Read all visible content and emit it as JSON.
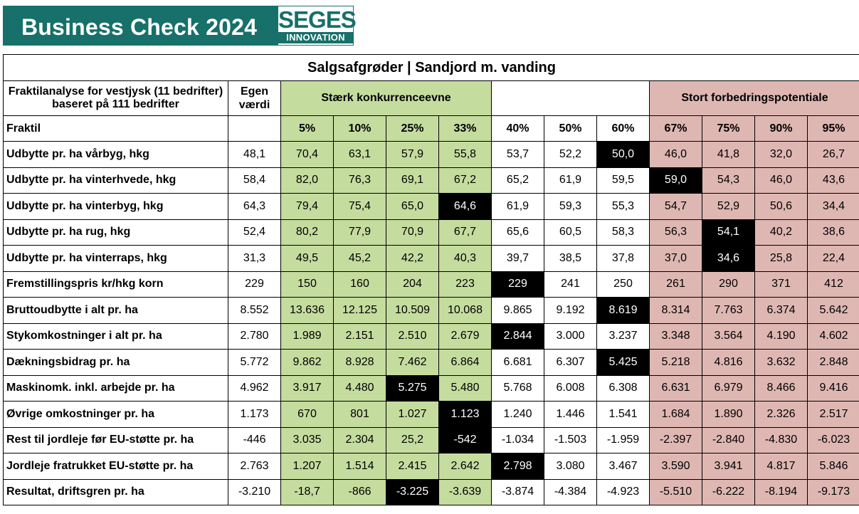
{
  "banner": {
    "title": "Business Check 2024",
    "logo_main": "SEGES",
    "logo_sub": "INNOVATION"
  },
  "table": {
    "title": "Salgsafgrøder | Sandjord m. vanding",
    "description": "Fraktilanalyse for vestjysk (11 bedrifter) baseret på 111 bedrifter",
    "egen_label": "Egen værdi",
    "group_strong": "Stærk konkurrenceevne",
    "group_improve": "Stort forbedringspotentiale",
    "fraktil_label": "Fraktil",
    "fraktiles": [
      "5%",
      "10%",
      "25%",
      "33%",
      "40%",
      "50%",
      "60%",
      "67%",
      "75%",
      "90%",
      "95%"
    ],
    "rows": [
      {
        "label": "Udbytte pr. ha vårbyg, hkg",
        "egen": "48,1",
        "values": [
          "70,4",
          "63,1",
          "57,9",
          "55,8",
          "53,7",
          "52,2",
          "50,0",
          "46,0",
          "41,8",
          "32,0",
          "26,7"
        ],
        "highlight": 6
      },
      {
        "label": "Udbytte pr. ha vinterhvede, hkg",
        "egen": "58,4",
        "values": [
          "82,0",
          "76,3",
          "69,1",
          "67,2",
          "65,2",
          "61,9",
          "59,5",
          "59,0",
          "54,3",
          "46,0",
          "43,6"
        ],
        "highlight": 7
      },
      {
        "label": "Udbytte pr. ha vinterbyg, hkg",
        "egen": "64,3",
        "values": [
          "79,4",
          "75,4",
          "65,0",
          "64,6",
          "61,9",
          "59,3",
          "55,3",
          "54,7",
          "52,9",
          "50,6",
          "34,4"
        ],
        "highlight": 3
      },
      {
        "label": "Udbytte pr. ha rug, hkg",
        "egen": "52,4",
        "values": [
          "80,2",
          "77,9",
          "70,9",
          "67,7",
          "65,6",
          "60,5",
          "58,3",
          "56,3",
          "54,1",
          "40,2",
          "38,6"
        ],
        "highlight": 8
      },
      {
        "label": "Udbytte pr. ha vinterraps, hkg",
        "egen": "31,3",
        "values": [
          "49,5",
          "45,2",
          "42,2",
          "40,3",
          "39,7",
          "38,5",
          "37,8",
          "37,0",
          "34,6",
          "25,8",
          "22,4"
        ],
        "highlight": 8
      },
      {
        "label": "Fremstillingspris kr/hkg korn",
        "egen": "229",
        "values": [
          "150",
          "160",
          "204",
          "223",
          "229",
          "241",
          "250",
          "261",
          "290",
          "371",
          "412"
        ],
        "highlight": 4
      },
      {
        "label": "Bruttoudbytte i alt pr. ha",
        "egen": "8.552",
        "values": [
          "13.636",
          "12.125",
          "10.509",
          "10.068",
          "9.865",
          "9.192",
          "8.619",
          "8.314",
          "7.763",
          "6.374",
          "5.642"
        ],
        "highlight": 6
      },
      {
        "label": "Stykomkostninger i alt pr. ha",
        "egen": "2.780",
        "values": [
          "1.989",
          "2.151",
          "2.510",
          "2.679",
          "2.844",
          "3.000",
          "3.237",
          "3.348",
          "3.564",
          "4.190",
          "4.602"
        ],
        "highlight": 4
      },
      {
        "label": "Dækningsbidrag pr. ha",
        "egen": "5.772",
        "values": [
          "9.862",
          "8.928",
          "7.462",
          "6.864",
          "6.681",
          "6.307",
          "5.425",
          "5.218",
          "4.816",
          "3.632",
          "2.848"
        ],
        "highlight": 6
      },
      {
        "label": "Maskinomk. inkl. arbejde pr. ha",
        "egen": "4.962",
        "values": [
          "3.917",
          "4.480",
          "5.275",
          "5.480",
          "5.768",
          "6.008",
          "6.308",
          "6.631",
          "6.979",
          "8.466",
          "9.416"
        ],
        "highlight": 2
      },
      {
        "label": "Øvrige omkostninger pr. ha",
        "egen": "1.173",
        "values": [
          "670",
          "801",
          "1.027",
          "1.123",
          "1.240",
          "1.446",
          "1.541",
          "1.684",
          "1.890",
          "2.326",
          "2.517"
        ],
        "highlight": 3
      },
      {
        "label": "Rest til jordleje før EU-støtte pr. ha",
        "egen": "-446",
        "values": [
          "3.035",
          "2.304",
          "25,2",
          "-542",
          "-1.034",
          "-1.503",
          "-1.959",
          "-2.397",
          "-2.840",
          "-4.830",
          "-6.023"
        ],
        "highlight": 3
      },
      {
        "label": "Jordleje fratrukket EU-støtte pr. ha",
        "egen": "2.763",
        "values": [
          "1.207",
          "1.514",
          "2.415",
          "2.642",
          "2.798",
          "3.080",
          "3.467",
          "3.590",
          "3.941",
          "4.817",
          "5.846"
        ],
        "highlight": 4
      },
      {
        "label": "Resultat, driftsgren pr. ha",
        "egen": "-3.210",
        "values": [
          "-18,7",
          "-866",
          "-3.225",
          "-3.639",
          "-3.874",
          "-4.384",
          "-4.923",
          "-5.510",
          "-6.222",
          "-8.194",
          "-9.173"
        ],
        "highlight": 2
      }
    ]
  },
  "colors": {
    "banner": "#17706a",
    "strong_group": "#c5dc9f",
    "improve_group": "#deb7b3",
    "highlight": "#000000"
  }
}
